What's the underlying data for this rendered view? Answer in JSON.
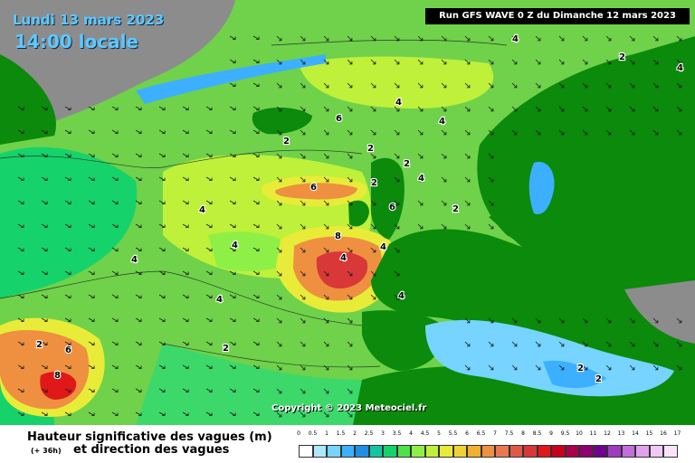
{
  "header": {
    "date": "Lundi 13 mars 2023",
    "time": "14:00 locale",
    "run_info": "Run GFS WAVE 0 Z du Dimanche 12 mars 2023"
  },
  "copyright": "Copyright © 2023 Meteociel.fr",
  "caption": {
    "title": "Hauteur significative des vagues (m)",
    "lead": "(+ 36h)",
    "subtitle": "et direction des vagues"
  },
  "contour_labels": [
    "4",
    "2",
    "4",
    "4",
    "6",
    "2",
    "4",
    "2",
    "2",
    "6",
    "2",
    "4",
    "4",
    "2",
    "6",
    "8",
    "4",
    "4",
    "4",
    "4",
    "4",
    "4",
    "6",
    "8",
    "2",
    "2",
    "2",
    "2"
  ],
  "legend": {
    "ticks": [
      "0",
      "0.5",
      "1",
      "1.5",
      "2",
      "2.5",
      "3",
      "3.5",
      "4",
      "4.5",
      "5",
      "5.5",
      "6",
      "6.5",
      "7",
      "7.5",
      "8",
      "8.5",
      "9",
      "9.5",
      "10",
      "11",
      "12",
      "13",
      "14",
      "15",
      "16",
      "17"
    ],
    "colors": [
      "#ffffff",
      "#aee8ff",
      "#76d4ff",
      "#3cb0ff",
      "#1f8fe6",
      "#13c4a2",
      "#16d26a",
      "#4fe04a",
      "#8ef046",
      "#bff03a",
      "#e8ec38",
      "#f0d238",
      "#f0b030",
      "#ee9040",
      "#e87850",
      "#e05848",
      "#d83838",
      "#e01818",
      "#c8001a",
      "#a8004a",
      "#8c0070",
      "#700090",
      "#a03cc0",
      "#c070d8",
      "#e0a0ec",
      "#f0c8f4",
      "#f8e4fa"
    ]
  },
  "colors": {
    "land": "#0b8a0b",
    "land_outside": "#8c8c8c",
    "sea_low": "#16d26a",
    "sea_mid": "#8ef046",
    "sea_high": "#e8ec38",
    "peak_orange": "#ee9040",
    "peak_red": "#e01818"
  }
}
